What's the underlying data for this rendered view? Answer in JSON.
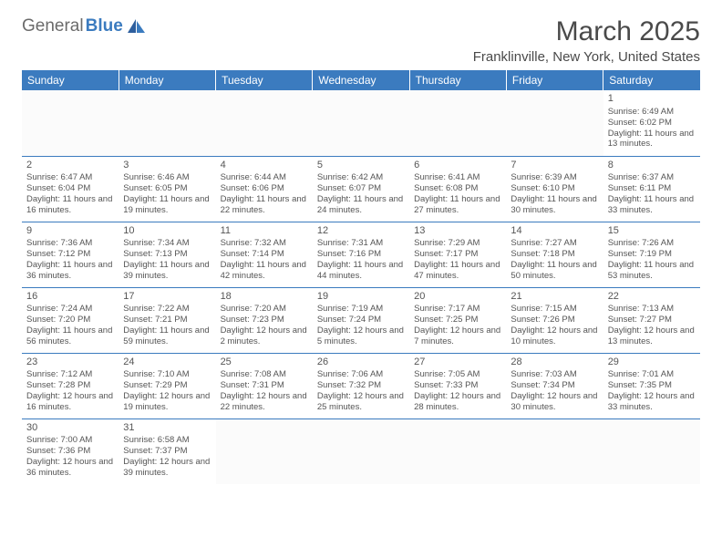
{
  "logo": {
    "grey": "General",
    "blue": "Blue"
  },
  "title": "March 2025",
  "location": "Franklinville, New York, United States",
  "style": {
    "header_bg": "#3b7bbf",
    "header_fg": "#ffffff",
    "row_border": "#3b7bbf",
    "text_color": "#555555",
    "title_fontsize": 30,
    "day_fontsize": 9.5
  },
  "weekdays": [
    "Sunday",
    "Monday",
    "Tuesday",
    "Wednesday",
    "Thursday",
    "Friday",
    "Saturday"
  ],
  "weeks": [
    [
      null,
      null,
      null,
      null,
      null,
      null,
      {
        "n": 1,
        "sr": "6:49 AM",
        "ss": "6:02 PM",
        "dl": "11 hours and 13 minutes."
      }
    ],
    [
      {
        "n": 2,
        "sr": "6:47 AM",
        "ss": "6:04 PM",
        "dl": "11 hours and 16 minutes."
      },
      {
        "n": 3,
        "sr": "6:46 AM",
        "ss": "6:05 PM",
        "dl": "11 hours and 19 minutes."
      },
      {
        "n": 4,
        "sr": "6:44 AM",
        "ss": "6:06 PM",
        "dl": "11 hours and 22 minutes."
      },
      {
        "n": 5,
        "sr": "6:42 AM",
        "ss": "6:07 PM",
        "dl": "11 hours and 24 minutes."
      },
      {
        "n": 6,
        "sr": "6:41 AM",
        "ss": "6:08 PM",
        "dl": "11 hours and 27 minutes."
      },
      {
        "n": 7,
        "sr": "6:39 AM",
        "ss": "6:10 PM",
        "dl": "11 hours and 30 minutes."
      },
      {
        "n": 8,
        "sr": "6:37 AM",
        "ss": "6:11 PM",
        "dl": "11 hours and 33 minutes."
      }
    ],
    [
      {
        "n": 9,
        "sr": "7:36 AM",
        "ss": "7:12 PM",
        "dl": "11 hours and 36 minutes."
      },
      {
        "n": 10,
        "sr": "7:34 AM",
        "ss": "7:13 PM",
        "dl": "11 hours and 39 minutes."
      },
      {
        "n": 11,
        "sr": "7:32 AM",
        "ss": "7:14 PM",
        "dl": "11 hours and 42 minutes."
      },
      {
        "n": 12,
        "sr": "7:31 AM",
        "ss": "7:16 PM",
        "dl": "11 hours and 44 minutes."
      },
      {
        "n": 13,
        "sr": "7:29 AM",
        "ss": "7:17 PM",
        "dl": "11 hours and 47 minutes."
      },
      {
        "n": 14,
        "sr": "7:27 AM",
        "ss": "7:18 PM",
        "dl": "11 hours and 50 minutes."
      },
      {
        "n": 15,
        "sr": "7:26 AM",
        "ss": "7:19 PM",
        "dl": "11 hours and 53 minutes."
      }
    ],
    [
      {
        "n": 16,
        "sr": "7:24 AM",
        "ss": "7:20 PM",
        "dl": "11 hours and 56 minutes."
      },
      {
        "n": 17,
        "sr": "7:22 AM",
        "ss": "7:21 PM",
        "dl": "11 hours and 59 minutes."
      },
      {
        "n": 18,
        "sr": "7:20 AM",
        "ss": "7:23 PM",
        "dl": "12 hours and 2 minutes."
      },
      {
        "n": 19,
        "sr": "7:19 AM",
        "ss": "7:24 PM",
        "dl": "12 hours and 5 minutes."
      },
      {
        "n": 20,
        "sr": "7:17 AM",
        "ss": "7:25 PM",
        "dl": "12 hours and 7 minutes."
      },
      {
        "n": 21,
        "sr": "7:15 AM",
        "ss": "7:26 PM",
        "dl": "12 hours and 10 minutes."
      },
      {
        "n": 22,
        "sr": "7:13 AM",
        "ss": "7:27 PM",
        "dl": "12 hours and 13 minutes."
      }
    ],
    [
      {
        "n": 23,
        "sr": "7:12 AM",
        "ss": "7:28 PM",
        "dl": "12 hours and 16 minutes."
      },
      {
        "n": 24,
        "sr": "7:10 AM",
        "ss": "7:29 PM",
        "dl": "12 hours and 19 minutes."
      },
      {
        "n": 25,
        "sr": "7:08 AM",
        "ss": "7:31 PM",
        "dl": "12 hours and 22 minutes."
      },
      {
        "n": 26,
        "sr": "7:06 AM",
        "ss": "7:32 PM",
        "dl": "12 hours and 25 minutes."
      },
      {
        "n": 27,
        "sr": "7:05 AM",
        "ss": "7:33 PM",
        "dl": "12 hours and 28 minutes."
      },
      {
        "n": 28,
        "sr": "7:03 AM",
        "ss": "7:34 PM",
        "dl": "12 hours and 30 minutes."
      },
      {
        "n": 29,
        "sr": "7:01 AM",
        "ss": "7:35 PM",
        "dl": "12 hours and 33 minutes."
      }
    ],
    [
      {
        "n": 30,
        "sr": "7:00 AM",
        "ss": "7:36 PM",
        "dl": "12 hours and 36 minutes."
      },
      {
        "n": 31,
        "sr": "6:58 AM",
        "ss": "7:37 PM",
        "dl": "12 hours and 39 minutes."
      },
      null,
      null,
      null,
      null,
      null
    ]
  ],
  "labels": {
    "sunrise": "Sunrise:",
    "sunset": "Sunset:",
    "daylight": "Daylight:"
  }
}
